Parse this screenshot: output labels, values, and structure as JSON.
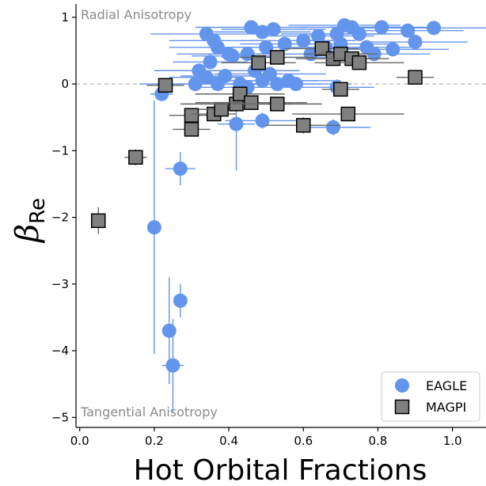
{
  "chart_data": {
    "type": "scatter",
    "xlabel": "Hot Orbital Fractions",
    "ylabel_symbol": "β",
    "ylabel_subscript": "Re",
    "xlim": [
      -0.01,
      1.09
    ],
    "ylim": [
      -5.15,
      1.2
    ],
    "xticks": [
      0.0,
      0.2,
      0.4,
      0.6,
      0.8,
      1.0
    ],
    "yticks": [
      1,
      0,
      -1,
      -2,
      -3,
      -4,
      -5
    ],
    "reference_line_y": 0,
    "annotations": {
      "top": "Radial Anisotropy",
      "bottom": "Tangential Anisotropy"
    },
    "legend_position": "bottom-right",
    "series": [
      {
        "name": "EAGLE",
        "marker": "circle",
        "color": "#6495ED",
        "points": [
          {
            "x": 0.34,
            "y": 0.75,
            "xerr": 0.15
          },
          {
            "x": 0.36,
            "y": 0.65,
            "xerr": 0.12
          },
          {
            "x": 0.37,
            "y": 0.55,
            "xerr": 0.13
          },
          {
            "x": 0.4,
            "y": 0.45,
            "xerr": 0.14
          },
          {
            "x": 0.35,
            "y": 0.33,
            "xerr": 0.1
          },
          {
            "x": 0.32,
            "y": 0.2,
            "xerr": 0.12
          },
          {
            "x": 0.34,
            "y": 0.1,
            "xerr": 0.1
          },
          {
            "x": 0.31,
            "y": 0.0,
            "xerr": 0.15
          },
          {
            "x": 0.37,
            "y": 0.0,
            "xerr": 0.16
          },
          {
            "x": 0.39,
            "y": 0.12,
            "xerr": 0.12
          },
          {
            "x": 0.41,
            "y": 0.42,
            "xerr": 0.11
          },
          {
            "x": 0.45,
            "y": 0.45,
            "xerr": 0.13
          },
          {
            "x": 0.46,
            "y": 0.85,
            "xerr": 0.15
          },
          {
            "x": 0.49,
            "y": 0.78,
            "xerr": 0.13
          },
          {
            "x": 0.52,
            "y": 0.82,
            "xerr": 0.14
          },
          {
            "x": 0.5,
            "y": 0.55,
            "xerr": 0.16
          },
          {
            "x": 0.53,
            "y": 0.4,
            "xerr": 0.15
          },
          {
            "x": 0.55,
            "y": 0.6,
            "xerr": 0.12
          },
          {
            "x": 0.47,
            "y": 0.2,
            "xerr": 0.12
          },
          {
            "x": 0.49,
            "y": 0.05,
            "xerr": 0.15
          },
          {
            "x": 0.51,
            "y": 0.15,
            "xerr": 0.15
          },
          {
            "x": 0.53,
            "y": 0.0,
            "xerr": 0.12
          },
          {
            "x": 0.56,
            "y": 0.05,
            "xerr": 0.14
          },
          {
            "x": 0.58,
            "y": 0.0,
            "xerr": 0.15
          },
          {
            "x": 0.45,
            "y": -0.05,
            "xerr": 0.14
          },
          {
            "x": 0.43,
            "y": 0.0,
            "xerr": 0.12
          },
          {
            "x": 0.6,
            "y": 0.65,
            "xerr": 0.14
          },
          {
            "x": 0.62,
            "y": 0.45,
            "xerr": 0.13
          },
          {
            "x": 0.64,
            "y": 0.72,
            "xerr": 0.15
          },
          {
            "x": 0.66,
            "y": 0.55,
            "xerr": 0.14
          },
          {
            "x": 0.69,
            "y": 0.75,
            "xerr": 0.15
          },
          {
            "x": 0.7,
            "y": 0.6,
            "xerr": 0.13
          },
          {
            "x": 0.71,
            "y": 0.88,
            "xerr": 0.15
          },
          {
            "x": 0.73,
            "y": 0.85,
            "xerr": 0.14
          },
          {
            "x": 0.75,
            "y": 0.75,
            "xerr": 0.15
          },
          {
            "x": 0.77,
            "y": 0.55,
            "xerr": 0.14
          },
          {
            "x": 0.79,
            "y": 0.45,
            "xerr": 0.15
          },
          {
            "x": 0.81,
            "y": 0.85,
            "xerr": 0.14
          },
          {
            "x": 0.84,
            "y": 0.52,
            "xerr": 0.15
          },
          {
            "x": 0.88,
            "y": 0.8,
            "xerr": 0.15
          },
          {
            "x": 0.9,
            "y": 0.63,
            "xerr": 0.14
          },
          {
            "x": 0.95,
            "y": 0.84,
            "xerr": 0.2
          },
          {
            "x": 0.69,
            "y": -0.05,
            "xerr": 0.1,
            "yerr": 0.12
          },
          {
            "x": 0.68,
            "y": -0.65,
            "xerr": 0.1,
            "yerr": 0.12
          },
          {
            "x": 0.49,
            "y": -0.55,
            "xerr": 0.1,
            "yerr": 0.12
          },
          {
            "x": 0.42,
            "y": -0.6,
            "xerr": 0.05,
            "yerr": 0.7
          },
          {
            "x": 0.22,
            "y": -0.15,
            "xerr": 0.03,
            "yerr": 0.1
          },
          {
            "x": 0.27,
            "y": -1.27,
            "xerr": 0.04,
            "yerr": 0.25
          },
          {
            "x": 0.2,
            "y": -2.15,
            "xerr": 0.01,
            "yerr": 1.9
          },
          {
            "x": 0.27,
            "y": -3.25,
            "xerr": 0.01,
            "yerr": 0.25
          },
          {
            "x": 0.24,
            "y": -3.7,
            "xerr": 0.01,
            "yerr": 0.8
          },
          {
            "x": 0.25,
            "y": -4.22,
            "xerr": 0.03,
            "yerr": 0.7
          }
        ]
      },
      {
        "name": "MAGPI",
        "marker": "square",
        "color": "#808080",
        "points": [
          {
            "x": 0.05,
            "y": -2.05,
            "yerr": 0.2
          },
          {
            "x": 0.15,
            "y": -1.1,
            "xerr": 0.03,
            "yerr": 0.12
          },
          {
            "x": 0.23,
            "y": -0.02,
            "xerr": 0.05,
            "yerr": 0.05
          },
          {
            "x": 0.3,
            "y": -0.47,
            "xerr": 0.06,
            "yerr": 0.1
          },
          {
            "x": 0.3,
            "y": -0.68,
            "xerr": 0.05,
            "yerr": 0.1
          },
          {
            "x": 0.36,
            "y": -0.45,
            "xerr": 0.06
          },
          {
            "x": 0.38,
            "y": -0.38,
            "xerr": 0.06
          },
          {
            "x": 0.42,
            "y": -0.3,
            "xerr": 0.15
          },
          {
            "x": 0.43,
            "y": -0.15,
            "xerr": 0.12
          },
          {
            "x": 0.46,
            "y": -0.28,
            "xerr": 0.15
          },
          {
            "x": 0.48,
            "y": 0.32,
            "xerr": 0.1
          },
          {
            "x": 0.53,
            "y": 0.4,
            "xerr": 0.1
          },
          {
            "x": 0.53,
            "y": -0.3,
            "xerr": 0.12
          },
          {
            "x": 0.6,
            "y": -0.62,
            "xerr": 0.1,
            "yerr": 0.12
          },
          {
            "x": 0.65,
            "y": 0.53,
            "xerr": 0.1
          },
          {
            "x": 0.68,
            "y": 0.38,
            "xerr": 0.1
          },
          {
            "x": 0.7,
            "y": -0.08,
            "xerr": 0.05
          },
          {
            "x": 0.7,
            "y": 0.45,
            "xerr": 0.1
          },
          {
            "x": 0.72,
            "y": -0.45,
            "xerr": 0.15
          },
          {
            "x": 0.73,
            "y": 0.38,
            "xerr": 0.1
          },
          {
            "x": 0.75,
            "y": 0.32,
            "xerr": 0.12
          },
          {
            "x": 0.9,
            "y": 0.1,
            "xerr": 0.05
          }
        ]
      }
    ]
  }
}
